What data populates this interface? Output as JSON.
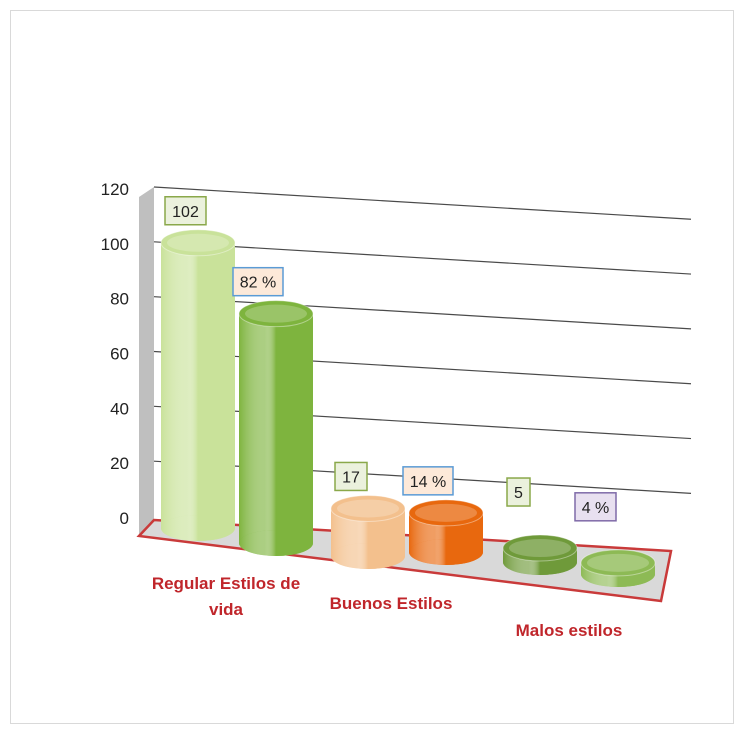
{
  "chart_data": {
    "type": "bar",
    "style": "3d-cylinder",
    "categories": [
      "Regular Estilos de vida",
      "Buenos Estilos",
      "Malos estilos"
    ],
    "category_label_lines": [
      [
        "Regular Estilos de",
        "vida"
      ],
      [
        "Buenos Estilos"
      ],
      [
        "Malos estilos"
      ]
    ],
    "series": [
      {
        "values": [
          102,
          17,
          5
        ],
        "labels": [
          "102",
          "17",
          "5"
        ]
      },
      {
        "values": [
          82,
          14,
          4
        ],
        "labels": [
          "82 %",
          "14 %",
          "4 %"
        ]
      }
    ],
    "bar_colors": [
      [
        "#c9e29a",
        "#f3c08d",
        "#6f9a3a"
      ],
      [
        "#7eb43e",
        "#e8680e",
        "#8dba55"
      ]
    ],
    "label_box_colors": [
      {
        "fill": "#ebf1dd",
        "stroke": "#8aa84a"
      },
      {
        "fill": "#fde9d9",
        "stroke": "#5b9bd5"
      }
    ],
    "label_box_overrides": {
      "1-2": {
        "fill": "#e8e0f0",
        "stroke": "#7f6aa8"
      }
    },
    "y_ticks": [
      0,
      20,
      40,
      60,
      80,
      100,
      120
    ],
    "ylim": [
      0,
      120
    ],
    "grid": true,
    "legend": "none",
    "category_label_color": "#c0262b",
    "floor_color": "#c93a3a",
    "wall_color": "#bfbfbf"
  }
}
